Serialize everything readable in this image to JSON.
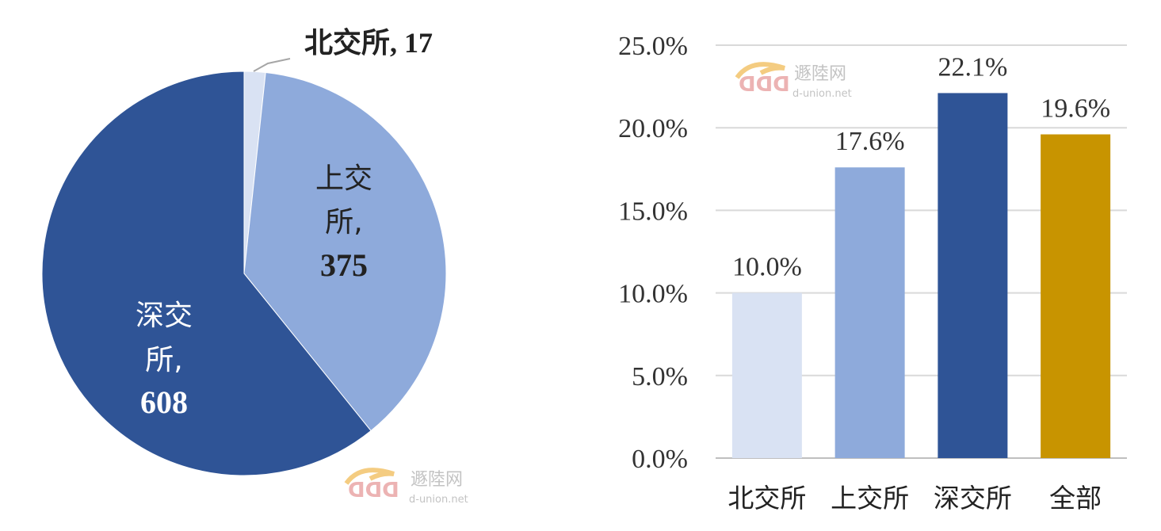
{
  "chart_data": [
    {
      "type": "pie",
      "title": "",
      "slices": [
        {
          "label": "北交所",
          "value": 17,
          "color": "#d9e2f3"
        },
        {
          "label": "上交所",
          "value": 375,
          "color": "#8eaadb"
        },
        {
          "label": "深交所",
          "value": 608,
          "color": "#2f5496"
        }
      ],
      "data_labels": {
        "bjs": {
          "name": "北交所",
          "value": "17"
        },
        "sjs": {
          "line1": "上交",
          "line2": "所,",
          "value": "375"
        },
        "szs": {
          "line1": "深交",
          "line2": "所,",
          "value": "608"
        }
      }
    },
    {
      "type": "bar",
      "title": "",
      "xlabel": "",
      "ylabel": "",
      "categories": [
        "北交所",
        "上交所",
        "深交所",
        "全部"
      ],
      "values": [
        10.0,
        17.6,
        22.1,
        19.6
      ],
      "value_labels": [
        "10.0%",
        "17.6%",
        "22.1%",
        "19.6%"
      ],
      "colors": [
        "#d9e2f3",
        "#8eaadb",
        "#2f5496",
        "#c89400"
      ],
      "ylim": [
        0,
        25
      ],
      "yticks": [
        "0.0%",
        "5.0%",
        "10.0%",
        "15.0%",
        "20.0%",
        "25.0%"
      ],
      "grid": true
    }
  ],
  "watermark": {
    "name": "遯陸网",
    "domain": "d-union.net"
  }
}
